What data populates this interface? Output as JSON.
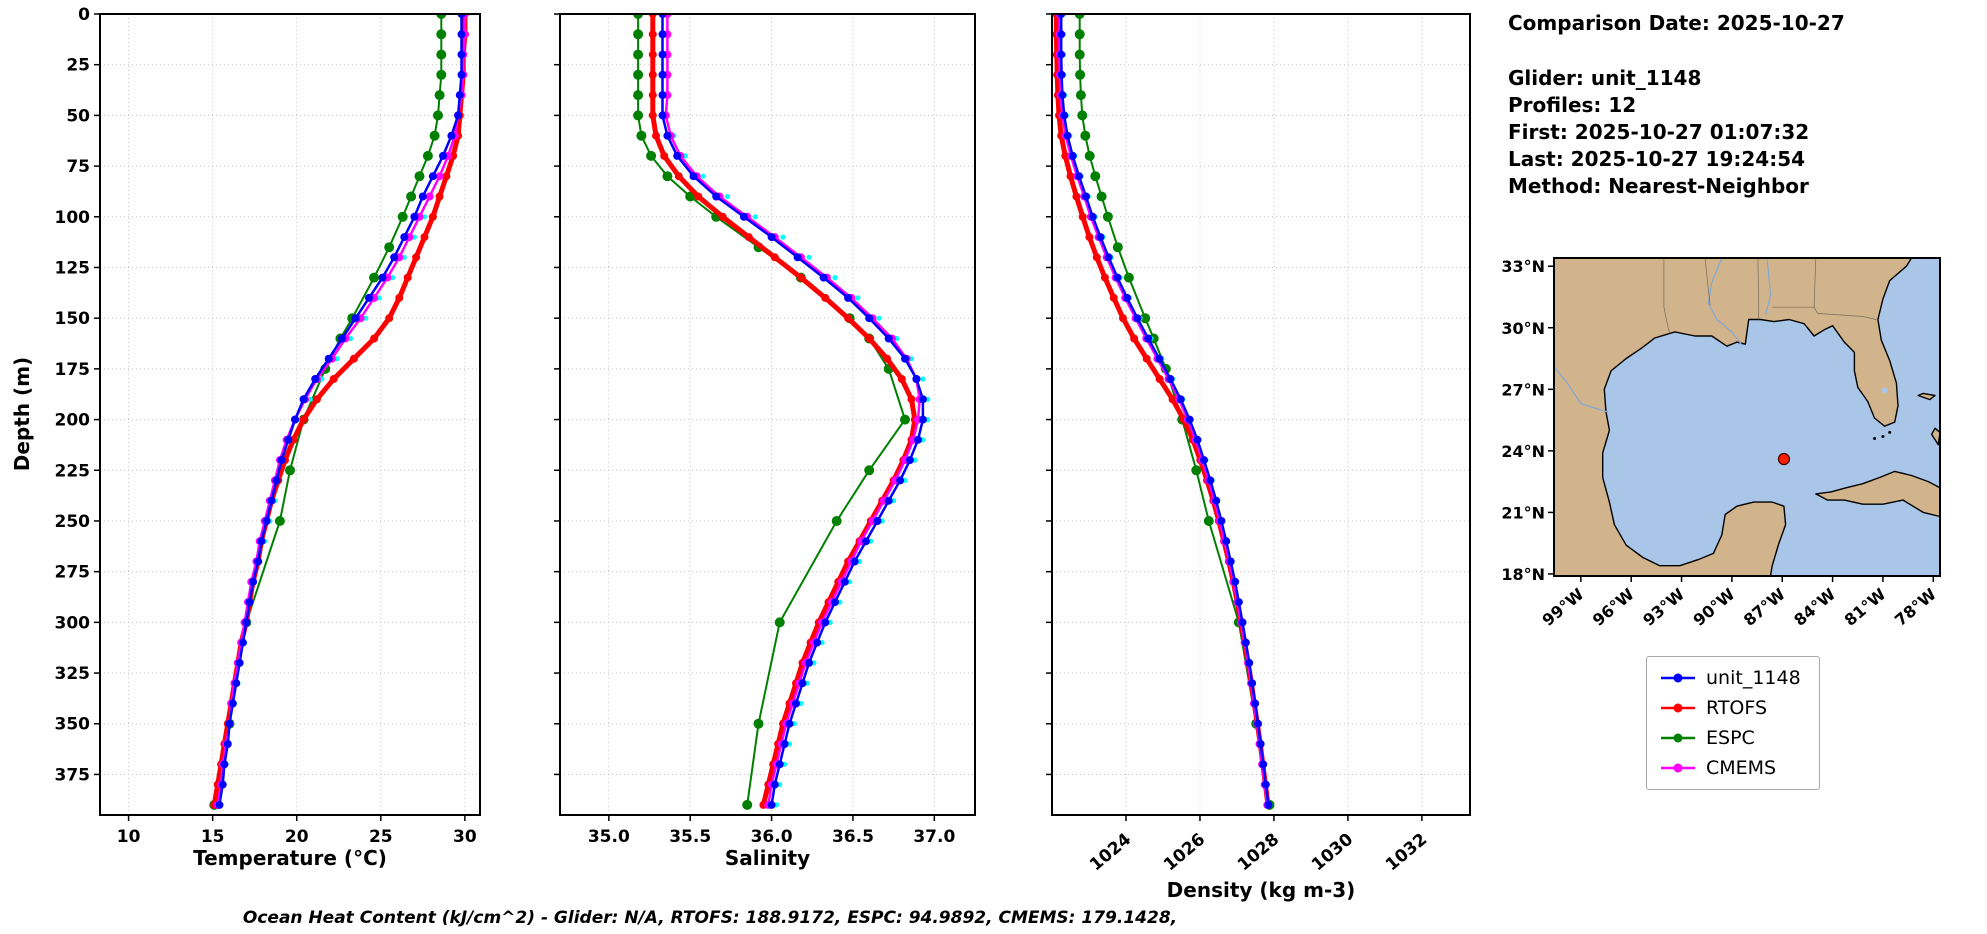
{
  "info": {
    "comparison_date": "Comparison Date: 2025-10-27",
    "glider": "Glider: unit_1148",
    "profiles": "Profiles: 12",
    "first": "First: 2025-10-27 01:07:32",
    "last": "Last: 2025-10-27 19:24:54",
    "method": "Method: Nearest-Neighbor"
  },
  "footer": {
    "ohc": "Ocean Heat Content (kJ/cm^2) - Glider: N/A,  RTOFS: 188.9172,  ESPC: 94.9892,  CMEMS: 179.1428,"
  },
  "legend": {
    "items": [
      {
        "label": "unit_1148",
        "color": "#0000ff"
      },
      {
        "label": "RTOFS",
        "color": "#ff0000"
      },
      {
        "label": "ESPC",
        "color": "#008000"
      },
      {
        "label": "CMEMS",
        "color": "#ff00ff"
      }
    ]
  },
  "map": {
    "extent": {
      "lon_min": -100.6,
      "lon_max": -77.6,
      "lat_min": 17.9,
      "lat_max": 33.4
    },
    "lat_tick_values": [
      33,
      30,
      27,
      24,
      21,
      18
    ],
    "lat_tick_labels": [
      "33°N",
      "30°N",
      "27°N",
      "24°N",
      "21°N",
      "18°N"
    ],
    "lon_tick_values": [
      -99,
      -96,
      -93,
      -90,
      -87,
      -84,
      -81,
      -78
    ],
    "lon_tick_labels": [
      "99°W",
      "96°W",
      "93°W",
      "90°W",
      "87°W",
      "84°W",
      "81°W",
      "78°W"
    ],
    "marker": {
      "lon": -86.9,
      "lat": 23.6
    },
    "colors": {
      "land": "#d2b48c",
      "water": "#a9c5e8",
      "marker": "#ff1f00",
      "coast": "#000000"
    }
  },
  "depth_grids": {
    "d10": [
      0,
      10,
      20,
      30,
      40,
      50,
      60,
      70,
      80,
      90,
      100,
      110,
      120,
      130,
      140,
      150,
      160,
      170,
      180,
      190,
      200,
      210,
      220,
      230,
      240,
      250,
      260,
      270,
      280,
      290,
      300,
      310,
      320,
      330,
      340,
      350,
      360,
      370,
      380,
      390
    ],
    "espc": [
      0,
      10,
      20,
      30,
      40,
      50,
      60,
      70,
      80,
      90,
      100,
      115,
      130,
      150,
      160,
      175,
      200,
      225,
      250,
      300,
      350,
      390
    ]
  },
  "chart_data": [
    {
      "type": "line",
      "title": "",
      "xlabel": "Temperature (°C)",
      "ylabel": "Depth (m)",
      "xlim": [
        8.3,
        30.9
      ],
      "depth_lim": [
        0,
        395
      ],
      "grid": true,
      "xtick_values": [
        10,
        15,
        20,
        25,
        30
      ],
      "xtick_labels": [
        "10",
        "15",
        "20",
        "25",
        "30"
      ],
      "ytick_values": [
        0,
        25,
        50,
        75,
        100,
        125,
        150,
        175,
        200,
        225,
        250,
        275,
        300,
        325,
        350,
        375
      ],
      "ytick_labels": [
        "0",
        "25",
        "50",
        "75",
        "100",
        "125",
        "150",
        "175",
        "200",
        "225",
        "250",
        "275",
        "300",
        "325",
        "350",
        "375"
      ],
      "rotate_xticks": false,
      "series": [
        {
          "name": "ESPC",
          "color": "#008000",
          "line": true,
          "line_width": 2,
          "marker_radius": 5,
          "depth_grid": "espc",
          "values": [
            28.6,
            28.6,
            28.6,
            28.6,
            28.5,
            28.4,
            28.2,
            27.8,
            27.3,
            26.8,
            26.3,
            25.5,
            24.6,
            23.3,
            22.6,
            21.7,
            20.4,
            19.6,
            19.0,
            17.0,
            16.0,
            15.1
          ]
        },
        {
          "name": "glider-profiles",
          "color": "#00ffff",
          "line": false,
          "line_width": 1,
          "marker_radius": 2.6,
          "depth_grid": "d10",
          "values": [
            29.9,
            29.9,
            29.9,
            29.9,
            29.8,
            29.7,
            29.4,
            29.0,
            28.5,
            28.0,
            27.6,
            27.0,
            26.4,
            25.7,
            24.9,
            24.1,
            23.2,
            22.4,
            21.5,
            20.8,
            20.2,
            19.7,
            19.3,
            19.0,
            18.7,
            18.4,
            18.1,
            17.8,
            17.5,
            17.3,
            17.1,
            16.9,
            16.7,
            16.5,
            16.3,
            16.1,
            15.9,
            15.8,
            15.6,
            15.5
          ]
        },
        {
          "name": "RTOFS",
          "color": "#ff0000",
          "line": true,
          "line_width": 5,
          "marker_radius": 4,
          "depth_grid": "d10",
          "values": [
            30.0,
            30.0,
            29.9,
            29.9,
            29.8,
            29.7,
            29.6,
            29.3,
            28.9,
            28.5,
            28.1,
            27.6,
            27.1,
            26.6,
            26.1,
            25.5,
            24.6,
            23.4,
            22.2,
            21.2,
            20.4,
            19.8,
            19.3,
            18.9,
            18.5,
            18.2,
            17.9,
            17.7,
            17.4,
            17.2,
            17.0,
            16.7,
            16.5,
            16.3,
            16.1,
            15.9,
            15.7,
            15.5,
            15.3,
            15.1
          ]
        },
        {
          "name": "CMEMS",
          "color": "#ff00ff",
          "line": true,
          "line_width": 2.5,
          "marker_radius": 4,
          "depth_grid": "d10",
          "values": [
            30.0,
            30.0,
            29.9,
            29.9,
            29.8,
            29.6,
            29.4,
            29.0,
            28.5,
            27.9,
            27.3,
            26.7,
            26.1,
            25.4,
            24.6,
            23.8,
            22.9,
            22.1,
            21.2,
            20.5,
            19.9,
            19.4,
            19.0,
            18.7,
            18.4,
            18.1,
            17.8,
            17.6,
            17.3,
            17.1,
            16.9,
            16.7,
            16.5,
            16.3,
            16.1,
            16.0,
            15.8,
            15.6,
            15.5,
            15.3
          ]
        },
        {
          "name": "unit_1148",
          "color": "#0000ff",
          "line": true,
          "line_width": 2.5,
          "marker_radius": 4,
          "depth_grid": "d10",
          "values": [
            29.8,
            29.8,
            29.8,
            29.8,
            29.7,
            29.6,
            29.2,
            28.7,
            28.1,
            27.5,
            27.0,
            26.4,
            25.8,
            25.1,
            24.3,
            23.5,
            22.7,
            21.9,
            21.1,
            20.4,
            19.9,
            19.5,
            19.1,
            18.8,
            18.5,
            18.2,
            17.9,
            17.7,
            17.4,
            17.2,
            17.0,
            16.8,
            16.6,
            16.4,
            16.2,
            16.0,
            15.9,
            15.7,
            15.6,
            15.4
          ]
        }
      ]
    },
    {
      "type": "line",
      "title": "",
      "xlabel": "Salinity",
      "ylabel": "Depth (m)",
      "xlim": [
        34.7,
        37.25
      ],
      "depth_lim": [
        0,
        395
      ],
      "grid": true,
      "xtick_values": [
        35.0,
        35.5,
        36.0,
        36.5,
        37.0
      ],
      "xtick_labels": [
        "35.0",
        "35.5",
        "36.0",
        "36.5",
        "37.0"
      ],
      "rotate_xticks": false,
      "series": [
        {
          "name": "ESPC",
          "color": "#008000",
          "line": true,
          "line_width": 2,
          "marker_radius": 5,
          "depth_grid": "espc",
          "values": [
            35.18,
            35.18,
            35.18,
            35.18,
            35.18,
            35.18,
            35.2,
            35.26,
            35.36,
            35.5,
            35.66,
            35.92,
            36.18,
            36.48,
            36.6,
            36.72,
            36.82,
            36.6,
            36.4,
            36.05,
            35.92,
            35.85
          ]
        },
        {
          "name": "glider-profiles",
          "color": "#00ffff",
          "line": false,
          "line_width": 1,
          "marker_radius": 2.6,
          "depth_grid": "d10",
          "values": [
            35.36,
            35.36,
            35.36,
            35.36,
            35.36,
            35.36,
            35.4,
            35.47,
            35.58,
            35.73,
            35.9,
            36.07,
            36.23,
            36.39,
            36.53,
            36.66,
            36.77,
            36.86,
            36.93,
            36.96,
            36.96,
            36.93,
            36.88,
            36.82,
            36.75,
            36.68,
            36.61,
            36.54,
            36.48,
            36.42,
            36.36,
            36.31,
            36.26,
            36.22,
            36.18,
            36.14,
            36.11,
            36.08,
            36.05,
            36.03
          ]
        },
        {
          "name": "RTOFS",
          "color": "#ff0000",
          "line": true,
          "line_width": 5,
          "marker_radius": 4,
          "depth_grid": "d10",
          "values": [
            35.27,
            35.27,
            35.27,
            35.27,
            35.27,
            35.27,
            35.29,
            35.34,
            35.43,
            35.55,
            35.7,
            35.86,
            36.02,
            36.18,
            36.33,
            36.47,
            36.6,
            36.71,
            36.8,
            36.86,
            36.88,
            36.86,
            36.81,
            36.75,
            36.68,
            36.61,
            36.54,
            36.47,
            36.41,
            36.35,
            36.29,
            36.24,
            36.19,
            36.15,
            36.11,
            36.07,
            36.04,
            36.01,
            35.98,
            35.95
          ]
        },
        {
          "name": "CMEMS",
          "color": "#ff00ff",
          "line": true,
          "line_width": 2.5,
          "marker_radius": 4,
          "depth_grid": "d10",
          "values": [
            35.36,
            35.36,
            35.36,
            35.36,
            35.36,
            35.35,
            35.38,
            35.44,
            35.54,
            35.68,
            35.85,
            36.02,
            36.18,
            36.34,
            36.49,
            36.62,
            36.74,
            36.83,
            36.89,
            36.91,
            36.9,
            36.87,
            36.82,
            36.76,
            36.69,
            36.62,
            36.55,
            36.49,
            36.43,
            36.37,
            36.31,
            36.26,
            36.21,
            36.17,
            36.13,
            36.09,
            36.06,
            36.03,
            36.0,
            35.98
          ]
        },
        {
          "name": "unit_1148",
          "color": "#0000ff",
          "line": true,
          "line_width": 2.5,
          "marker_radius": 4,
          "depth_grid": "d10",
          "values": [
            35.33,
            35.33,
            35.33,
            35.33,
            35.33,
            35.33,
            35.36,
            35.42,
            35.52,
            35.66,
            35.83,
            36.0,
            36.16,
            36.32,
            36.47,
            36.6,
            36.72,
            36.82,
            36.89,
            36.93,
            36.93,
            36.9,
            36.85,
            36.79,
            36.72,
            36.65,
            36.58,
            36.51,
            36.45,
            36.39,
            36.33,
            36.28,
            36.23,
            36.19,
            36.15,
            36.11,
            36.08,
            36.05,
            36.02,
            36.0
          ]
        }
      ]
    },
    {
      "type": "line",
      "title": "",
      "xlabel": "Density (kg m-3)",
      "ylabel": "Depth (m)",
      "xlim": [
        1022.0,
        1033.3
      ],
      "depth_lim": [
        0,
        395
      ],
      "grid": true,
      "xtick_values": [
        1024,
        1026,
        1028,
        1030,
        1032
      ],
      "xtick_labels": [
        "1024",
        "1026",
        "1028",
        "1030",
        "1032"
      ],
      "rotate_xticks": true,
      "series": [
        {
          "name": "ESPC",
          "color": "#008000",
          "line": true,
          "line_width": 2,
          "marker_radius": 5,
          "depth_grid": "espc",
          "values": [
            1022.75,
            1022.75,
            1022.75,
            1022.76,
            1022.78,
            1022.82,
            1022.9,
            1023.02,
            1023.17,
            1023.34,
            1023.51,
            1023.78,
            1024.08,
            1024.52,
            1024.75,
            1025.08,
            1025.52,
            1025.9,
            1026.24,
            1027.05,
            1027.52,
            1027.88
          ]
        },
        {
          "name": "glider-profiles",
          "color": "#00ffff",
          "line": false,
          "line_width": 1,
          "marker_radius": 2.6,
          "depth_grid": "d10",
          "values": [
            1022.31,
            1022.31,
            1022.31,
            1022.32,
            1022.34,
            1022.39,
            1022.48,
            1022.62,
            1022.79,
            1022.98,
            1023.17,
            1023.38,
            1023.6,
            1023.84,
            1024.1,
            1024.38,
            1024.67,
            1024.97,
            1025.26,
            1025.54,
            1025.77,
            1025.98,
            1026.16,
            1026.33,
            1026.48,
            1026.62,
            1026.75,
            1026.87,
            1026.99,
            1027.09,
            1027.19,
            1027.28,
            1027.37,
            1027.45,
            1027.53,
            1027.61,
            1027.68,
            1027.75,
            1027.82,
            1027.89
          ]
        },
        {
          "name": "RTOFS",
          "color": "#ff0000",
          "line": true,
          "line_width": 5,
          "marker_radius": 4,
          "depth_grid": "d10",
          "values": [
            1022.12,
            1022.12,
            1022.13,
            1022.14,
            1022.16,
            1022.19,
            1022.25,
            1022.36,
            1022.5,
            1022.66,
            1022.83,
            1023.01,
            1023.21,
            1023.43,
            1023.67,
            1023.92,
            1024.22,
            1024.56,
            1024.91,
            1025.26,
            1025.56,
            1025.81,
            1026.01,
            1026.19,
            1026.36,
            1026.51,
            1026.65,
            1026.78,
            1026.9,
            1027.01,
            1027.11,
            1027.21,
            1027.3,
            1027.39,
            1027.47,
            1027.55,
            1027.63,
            1027.7,
            1027.77,
            1027.84
          ]
        },
        {
          "name": "CMEMS",
          "color": "#ff00ff",
          "line": true,
          "line_width": 2.5,
          "marker_radius": 4,
          "depth_grid": "d10",
          "values": [
            1022.2,
            1022.2,
            1022.2,
            1022.21,
            1022.23,
            1022.28,
            1022.37,
            1022.51,
            1022.68,
            1022.87,
            1023.05,
            1023.26,
            1023.48,
            1023.72,
            1023.98,
            1024.26,
            1024.55,
            1024.85,
            1025.15,
            1025.43,
            1025.67,
            1025.88,
            1026.06,
            1026.23,
            1026.39,
            1026.53,
            1026.66,
            1026.79,
            1026.91,
            1027.01,
            1027.11,
            1027.21,
            1027.3,
            1027.38,
            1027.46,
            1027.54,
            1027.61,
            1027.68,
            1027.75,
            1027.82
          ]
        },
        {
          "name": "unit_1148",
          "color": "#0000ff",
          "line": true,
          "line_width": 2.5,
          "marker_radius": 4,
          "depth_grid": "d10",
          "values": [
            1022.25,
            1022.25,
            1022.25,
            1022.26,
            1022.28,
            1022.33,
            1022.42,
            1022.56,
            1022.73,
            1022.92,
            1023.1,
            1023.31,
            1023.53,
            1023.77,
            1024.03,
            1024.31,
            1024.6,
            1024.9,
            1025.2,
            1025.48,
            1025.72,
            1025.93,
            1026.11,
            1026.28,
            1026.44,
            1026.58,
            1026.71,
            1026.83,
            1026.95,
            1027.05,
            1027.15,
            1027.24,
            1027.33,
            1027.41,
            1027.49,
            1027.57,
            1027.64,
            1027.71,
            1027.78,
            1027.85
          ]
        }
      ]
    }
  ]
}
